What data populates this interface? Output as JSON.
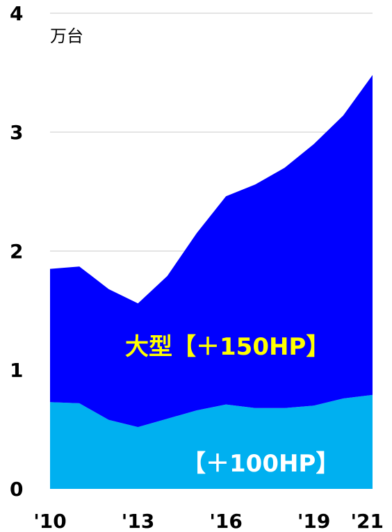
{
  "chart_data": {
    "type": "area",
    "stacked": true,
    "unit_label": "万台",
    "x": [
      2010,
      2011,
      2012,
      2013,
      2014,
      2015,
      2016,
      2017,
      2018,
      2019,
      2020,
      2021
    ],
    "xtick_labels": [
      {
        "x": 2010,
        "label": "'10"
      },
      {
        "x": 2013,
        "label": "'13"
      },
      {
        "x": 2016,
        "label": "'16"
      },
      {
        "x": 2019,
        "label": "'19"
      },
      {
        "x": 2021,
        "label": "'21"
      }
    ],
    "yticks": [
      "0",
      "1",
      "2",
      "3",
      "4"
    ],
    "ylim": [
      0,
      4
    ],
    "grid": true,
    "series": [
      {
        "name": "【＋100HP】",
        "color": "#00b0f0",
        "values": [
          0.73,
          0.72,
          0.58,
          0.52,
          0.59,
          0.66,
          0.71,
          0.68,
          0.68,
          0.7,
          0.76,
          0.79
        ]
      },
      {
        "name": "大型【＋150HP】",
        "color": "#0000ff",
        "values": [
          1.12,
          1.15,
          1.1,
          1.04,
          1.2,
          1.49,
          1.75,
          1.88,
          2.02,
          2.2,
          2.38,
          2.69
        ]
      }
    ],
    "label_colors": [
      "#ffffff",
      "#ffff00"
    ]
  }
}
